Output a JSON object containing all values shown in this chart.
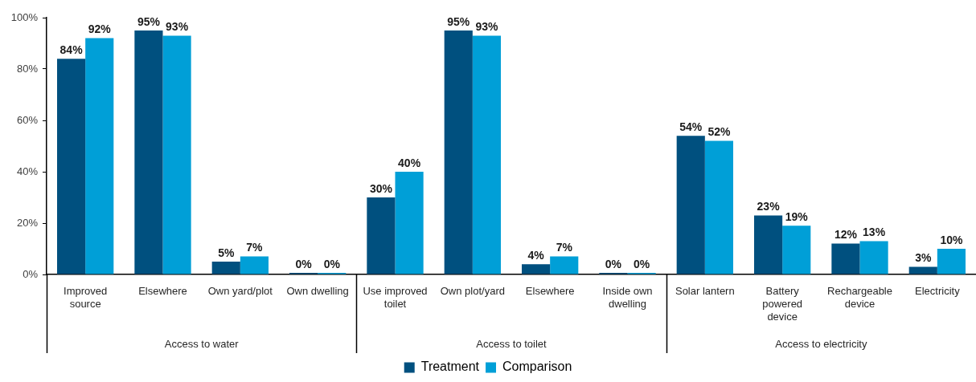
{
  "chart_data": {
    "type": "bar",
    "categories": [
      "Improved source",
      "Elsewhere",
      "Own yard/plot",
      "Own dwelling",
      "Use improved toilet",
      "Own plot/yard",
      "Elsewhere",
      "Inside own dwelling",
      "Solar lantern",
      "Battery powered device",
      "Rechargeable device",
      "Electricity"
    ],
    "series": [
      {
        "name": "Treatment",
        "color": "#00507f",
        "values": [
          84,
          95,
          5,
          0,
          30,
          95,
          4,
          0,
          54,
          23,
          12,
          3
        ],
        "value_labels": [
          "84%",
          "95%",
          "5%",
          "0%",
          "30%",
          "95%",
          "4%",
          "0%",
          "54%",
          "23%",
          "12%",
          "3%"
        ]
      },
      {
        "name": "Comparison",
        "color": "#009fd7",
        "values": [
          92,
          93,
          7,
          0,
          40,
          93,
          7,
          0,
          52,
          19,
          13,
          10
        ],
        "value_labels": [
          "92%",
          "93%",
          "7%",
          "0%",
          "40%",
          "93%",
          "7%",
          "0%",
          "52%",
          "19%",
          "13%",
          "10%"
        ]
      }
    ],
    "ylim": [
      0,
      100
    ],
    "yticks": [
      {
        "value": 0,
        "label": "0%"
      },
      {
        "value": 20,
        "label": "20%"
      },
      {
        "value": 40,
        "label": "40%"
      },
      {
        "value": 60,
        "label": "60%"
      },
      {
        "value": 80,
        "label": "80%"
      },
      {
        "value": 100,
        "label": "100%"
      }
    ],
    "annotations": [
      "Access to water",
      "Access to toilet",
      "Access to electricity"
    ],
    "legend": "bottom"
  }
}
